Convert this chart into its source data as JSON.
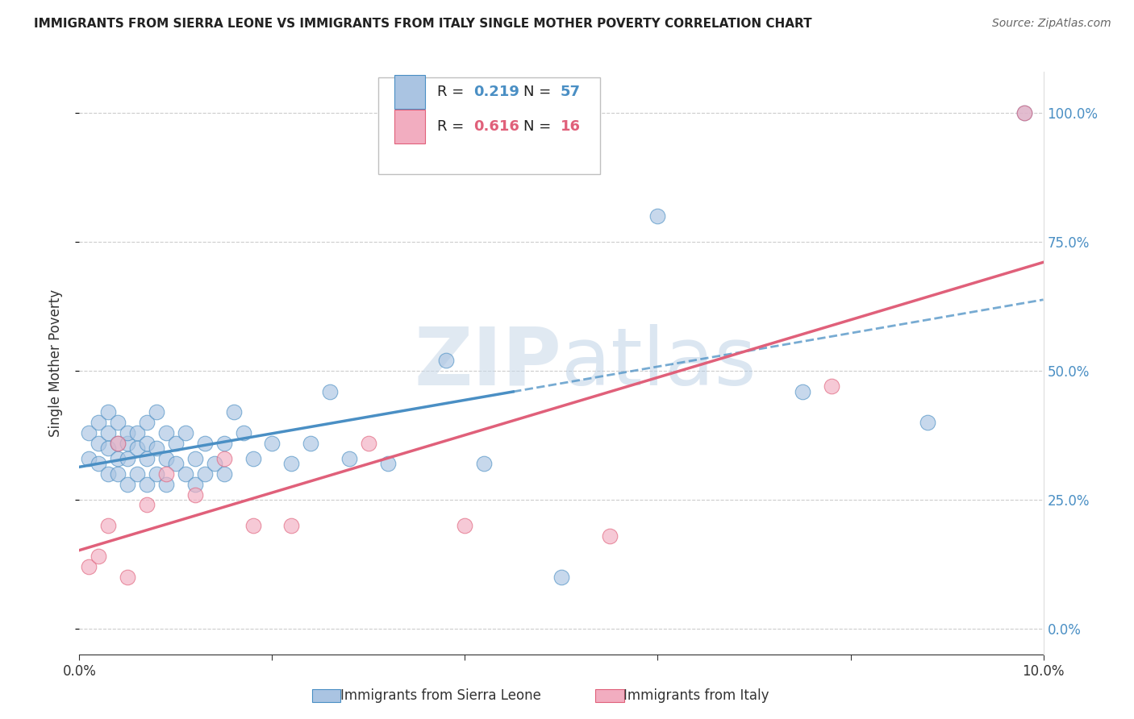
{
  "title": "IMMIGRANTS FROM SIERRA LEONE VS IMMIGRANTS FROM ITALY SINGLE MOTHER POVERTY CORRELATION CHART",
  "source": "Source: ZipAtlas.com",
  "ylabel": "Single Mother Poverty",
  "watermark_zip": "ZIP",
  "watermark_atlas": "atlas",
  "legend_labels": [
    "Immigrants from Sierra Leone",
    "Immigrants from Italy"
  ],
  "r_sl": 0.219,
  "n_sl": 57,
  "r_it": 0.616,
  "n_it": 16,
  "color_sl_fill": "#aac4e2",
  "color_it_fill": "#f2adc0",
  "color_sl_line": "#4a8fc4",
  "color_it_line": "#e0607a",
  "x_min": 0.0,
  "x_max": 0.1,
  "y_min": -0.05,
  "y_max": 1.08,
  "sl_x": [
    0.001,
    0.001,
    0.002,
    0.002,
    0.002,
    0.003,
    0.003,
    0.003,
    0.003,
    0.004,
    0.004,
    0.004,
    0.004,
    0.005,
    0.005,
    0.005,
    0.005,
    0.006,
    0.006,
    0.006,
    0.007,
    0.007,
    0.007,
    0.007,
    0.008,
    0.008,
    0.008,
    0.009,
    0.009,
    0.009,
    0.01,
    0.01,
    0.011,
    0.011,
    0.012,
    0.012,
    0.013,
    0.013,
    0.014,
    0.015,
    0.015,
    0.016,
    0.017,
    0.018,
    0.02,
    0.022,
    0.024,
    0.026,
    0.028,
    0.032,
    0.038,
    0.042,
    0.05,
    0.06,
    0.075,
    0.088,
    0.098
  ],
  "sl_y": [
    0.33,
    0.38,
    0.32,
    0.36,
    0.4,
    0.3,
    0.35,
    0.38,
    0.42,
    0.3,
    0.33,
    0.36,
    0.4,
    0.28,
    0.33,
    0.36,
    0.38,
    0.3,
    0.35,
    0.38,
    0.28,
    0.33,
    0.36,
    0.4,
    0.3,
    0.35,
    0.42,
    0.28,
    0.33,
    0.38,
    0.32,
    0.36,
    0.3,
    0.38,
    0.28,
    0.33,
    0.3,
    0.36,
    0.32,
    0.3,
    0.36,
    0.42,
    0.38,
    0.33,
    0.36,
    0.32,
    0.36,
    0.46,
    0.33,
    0.32,
    0.52,
    0.32,
    0.1,
    0.8,
    0.46,
    0.4,
    1.0
  ],
  "it_x": [
    0.001,
    0.002,
    0.003,
    0.004,
    0.005,
    0.007,
    0.009,
    0.012,
    0.015,
    0.018,
    0.022,
    0.03,
    0.04,
    0.055,
    0.078,
    0.098
  ],
  "it_y": [
    0.12,
    0.14,
    0.2,
    0.36,
    0.1,
    0.24,
    0.3,
    0.26,
    0.33,
    0.2,
    0.2,
    0.36,
    0.2,
    0.18,
    0.47,
    1.0
  ],
  "sl_line_x_end": 0.045,
  "background_color": "#ffffff",
  "grid_color": "#cccccc"
}
